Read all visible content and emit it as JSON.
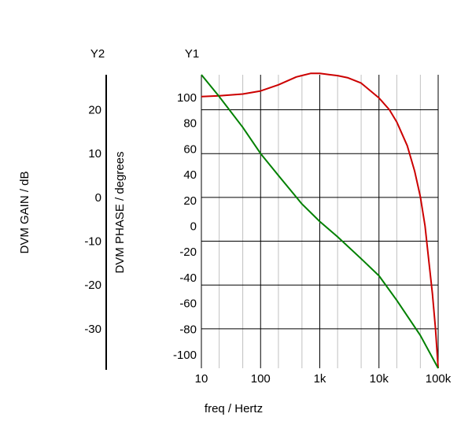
{
  "chart_data": {
    "type": "line",
    "xlabel": "freq / Hertz",
    "x_scale": "log",
    "xlim": [
      10,
      100000
    ],
    "x_ticks": [
      {
        "value": 10,
        "label": "10"
      },
      {
        "value": 100,
        "label": "100"
      },
      {
        "value": 1000,
        "label": "1k"
      },
      {
        "value": 10000,
        "label": "10k"
      },
      {
        "value": 100000,
        "label": "100k"
      }
    ],
    "y1": {
      "name": "Y1",
      "label": "DVM PHASE / degrees",
      "ticks": [
        100,
        80,
        60,
        40,
        20,
        0,
        -20,
        -40,
        -60,
        -80,
        -100
      ]
    },
    "y2": {
      "name": "Y2",
      "label": "DVM GAIN / dB",
      "ticks": [
        20,
        10,
        0,
        -10,
        -20,
        -30
      ],
      "ylim": [
        -39,
        28
      ]
    },
    "grid": true,
    "series": [
      {
        "axis": "y2",
        "color": "#cc0000",
        "x": [
          10,
          20,
          50,
          100,
          200,
          400,
          700,
          1000,
          1500,
          2000,
          3000,
          5000,
          10000,
          15000,
          20000,
          30000,
          40000,
          50000,
          60000,
          70000,
          80000,
          90000,
          100000
        ],
        "y": [
          23.0,
          23.2,
          23.6,
          24.3,
          25.7,
          27.5,
          28.3,
          28.3,
          28.0,
          27.8,
          27.3,
          26.1,
          22.7,
          20.0,
          17.2,
          11.8,
          6.0,
          0.2,
          -6.5,
          -14.8,
          -22.0,
          -30.0,
          -39.0
        ]
      },
      {
        "axis": "y2",
        "color": "#008000",
        "x": [
          10,
          20,
          50,
          100,
          200,
          500,
          1000,
          2000,
          5000,
          10000,
          20000,
          50000,
          100000
        ],
        "y": [
          28.0,
          23.0,
          16.0,
          10.0,
          5.0,
          -1.5,
          -5.5,
          -9.0,
          -14.0,
          -17.9,
          -23.5,
          -31.5,
          -39.0
        ]
      }
    ]
  }
}
